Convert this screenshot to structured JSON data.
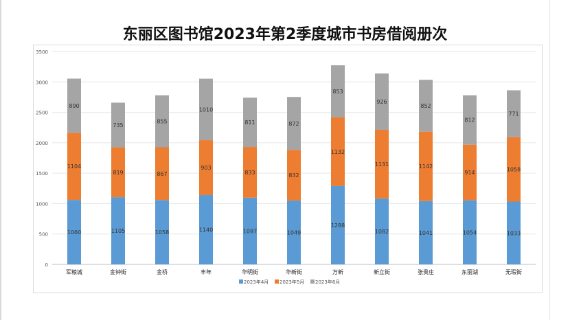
{
  "chart_data": {
    "type": "bar",
    "stacked": true,
    "title": "东丽区图书馆2023年第2季度城市书房借阅册次",
    "categories": [
      "军粮城",
      "金钟街",
      "金桥",
      "丰年",
      "华明街",
      "华新街",
      "万新",
      "新立街",
      "张贵庄",
      "东丽湖",
      "无瑕街"
    ],
    "series": [
      {
        "name": "2023年4月",
        "color": "#5b9bd5",
        "values": [
          1060,
          1105,
          1058,
          1140,
          1097,
          1049,
          1288,
          1082,
          1041,
          1054,
          1033
        ]
      },
      {
        "name": "2023年5月",
        "color": "#ed7d31",
        "values": [
          1104,
          819,
          867,
          903,
          833,
          832,
          1132,
          1131,
          1142,
          914,
          1058
        ]
      },
      {
        "name": "2023年6月",
        "color": "#a5a5a5",
        "values": [
          890,
          735,
          855,
          1010,
          811,
          872,
          853,
          926,
          852,
          812,
          771
        ]
      }
    ],
    "ylim": [
      0,
      3500
    ],
    "yticks": [
      0,
      500,
      1000,
      1500,
      2000,
      2500,
      3000,
      3500
    ],
    "grid": true,
    "legend": "bottom"
  }
}
